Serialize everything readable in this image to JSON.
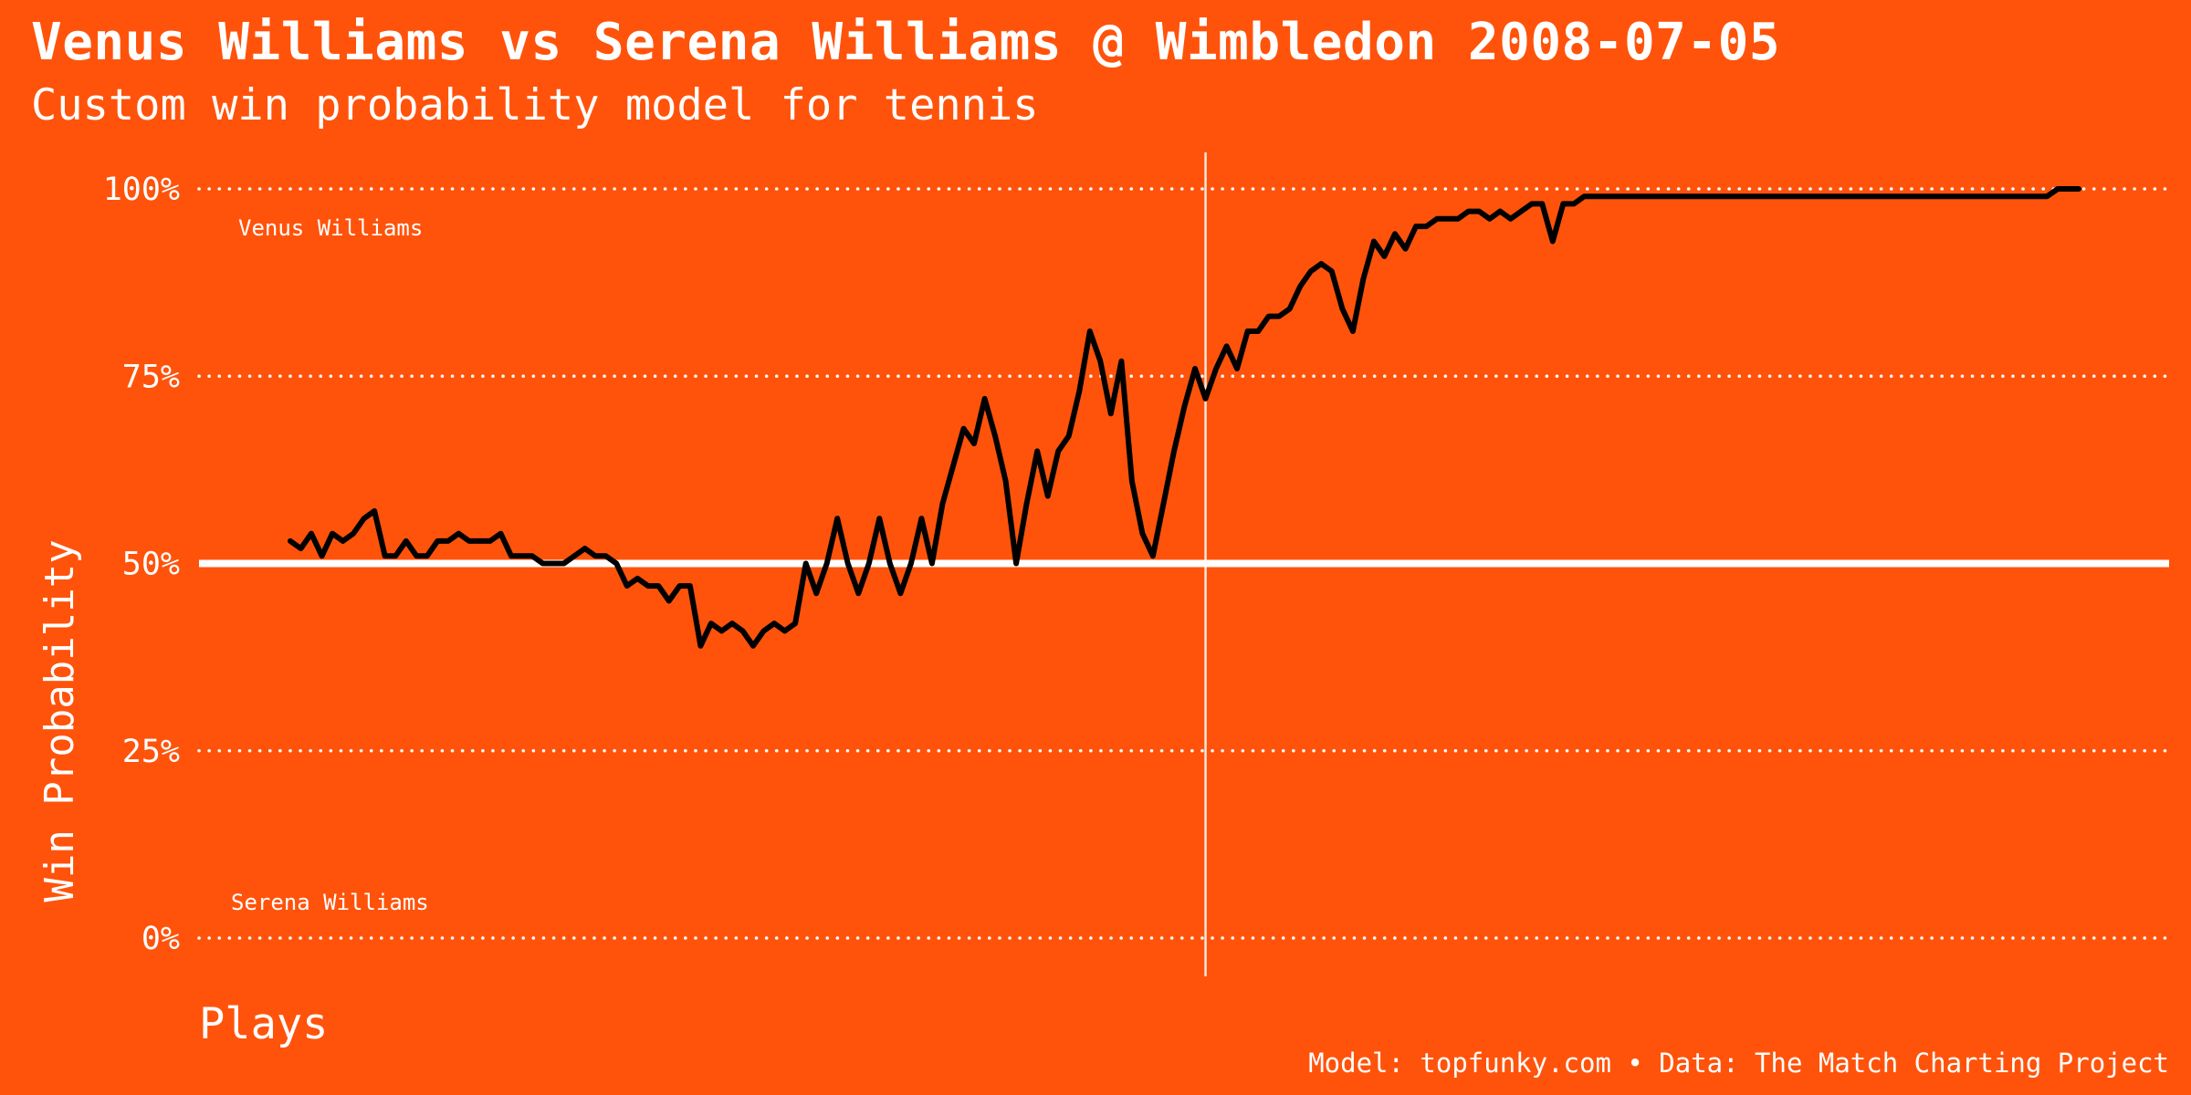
{
  "header": {
    "title": "Venus Williams vs Serena Williams @ Wimbledon 2008-07-05",
    "subtitle": "Custom win probability model for tennis"
  },
  "caption": "Model: topfunky.com • Data: The Match Charting Project",
  "colors": {
    "background": "#FF530B",
    "line": "#000000",
    "reference": "#ffffff"
  },
  "chart_data": {
    "type": "line",
    "title": "Venus Williams vs Serena Williams @ Wimbledon 2008-07-05",
    "subtitle": "Custom win probability model for tennis",
    "xlabel": "Plays",
    "ylabel": "Win Probability",
    "ylim": [
      0,
      1
    ],
    "yticks": [
      {
        "value": 0,
        "label": "0%"
      },
      {
        "value": 0.25,
        "label": "25%"
      },
      {
        "value": 0.5,
        "label": "50%"
      },
      {
        "value": 0.75,
        "label": "75%"
      },
      {
        "value": 1,
        "label": "100%"
      }
    ],
    "grid": "horizontal dotted",
    "annotations": {
      "top_player": "Venus Williams",
      "bottom_player": "Serena Williams",
      "reference_line": 0.5,
      "vertical_marker_x": 87
    },
    "xlim": [
      0,
      170
    ],
    "series": [
      {
        "x": [
          0,
          1,
          2,
          3,
          4,
          5,
          6,
          7,
          8,
          9,
          10,
          11,
          12,
          13,
          14,
          15,
          16,
          17,
          18,
          19,
          20,
          21,
          22,
          23,
          24,
          25,
          26,
          27,
          28,
          29,
          30,
          31,
          32,
          33,
          34,
          35,
          36,
          37,
          38,
          39,
          40,
          41,
          42,
          43,
          44,
          45,
          46,
          47,
          48,
          49,
          50,
          51,
          52,
          53,
          54,
          55,
          56,
          57,
          58,
          59,
          60,
          61,
          62,
          63,
          64,
          65,
          66,
          67,
          68,
          69,
          70,
          71,
          72,
          73,
          74,
          75,
          76,
          77,
          78,
          79,
          80,
          81,
          82,
          83,
          84,
          85,
          86,
          87,
          88,
          89,
          90,
          91,
          92,
          93,
          94,
          95,
          96,
          97,
          98,
          99,
          100,
          101,
          102,
          103,
          104,
          105,
          106,
          107,
          108,
          109,
          110,
          111,
          112,
          113,
          114,
          115,
          116,
          117,
          118,
          119,
          120,
          121,
          122,
          123,
          124,
          125,
          126,
          127,
          128,
          129,
          130,
          131,
          132,
          133,
          134,
          135,
          136,
          137,
          138,
          139,
          140,
          141,
          142,
          143,
          144,
          145,
          146,
          147,
          148,
          149,
          150,
          151,
          152,
          153,
          154,
          155,
          156,
          157,
          158,
          159,
          160,
          161,
          162,
          163,
          164,
          165,
          166,
          167,
          168,
          169,
          170
        ],
        "y": [
          0.53,
          0.52,
          0.54,
          0.51,
          0.54,
          0.53,
          0.54,
          0.56,
          0.57,
          0.51,
          0.51,
          0.53,
          0.51,
          0.51,
          0.53,
          0.53,
          0.54,
          0.53,
          0.53,
          0.53,
          0.54,
          0.51,
          0.51,
          0.51,
          0.5,
          0.5,
          0.5,
          0.51,
          0.52,
          0.51,
          0.51,
          0.5,
          0.47,
          0.48,
          0.47,
          0.47,
          0.45,
          0.47,
          0.47,
          0.39,
          0.42,
          0.41,
          0.42,
          0.41,
          0.39,
          0.41,
          0.42,
          0.41,
          0.42,
          0.5,
          0.46,
          0.5,
          0.56,
          0.5,
          0.46,
          0.5,
          0.56,
          0.5,
          0.46,
          0.5,
          0.56,
          0.5,
          0.58,
          0.63,
          0.68,
          0.66,
          0.72,
          0.67,
          0.61,
          0.5,
          0.58,
          0.65,
          0.59,
          0.65,
          0.67,
          0.73,
          0.81,
          0.77,
          0.7,
          0.77,
          0.61,
          0.54,
          0.51,
          0.58,
          0.65,
          0.71,
          0.76,
          0.72,
          0.76,
          0.79,
          0.76,
          0.81,
          0.81,
          0.83,
          0.83,
          0.84,
          0.87,
          0.89,
          0.9,
          0.89,
          0.84,
          0.81,
          0.88,
          0.93,
          0.91,
          0.94,
          0.92,
          0.95,
          0.95,
          0.96,
          0.96,
          0.96,
          0.97,
          0.97,
          0.96,
          0.97,
          0.96,
          0.97,
          0.98,
          0.98,
          0.93,
          0.98,
          0.98,
          0.99,
          0.99,
          0.99,
          0.99,
          0.99,
          0.99,
          0.99,
          0.99,
          0.99,
          0.99,
          0.99,
          0.99,
          0.99,
          0.99,
          0.99,
          0.99,
          0.99,
          0.99,
          0.99,
          0.99,
          0.99,
          0.99,
          0.99,
          0.99,
          0.99,
          0.99,
          0.99,
          0.99,
          0.99,
          0.99,
          0.99,
          0.99,
          0.99,
          0.99,
          0.99,
          0.99,
          0.99,
          0.99,
          0.99,
          0.99,
          0.99,
          0.99,
          0.99,
          0.99,
          0.99,
          1.0,
          1.0,
          1.0
        ]
      }
    ]
  }
}
